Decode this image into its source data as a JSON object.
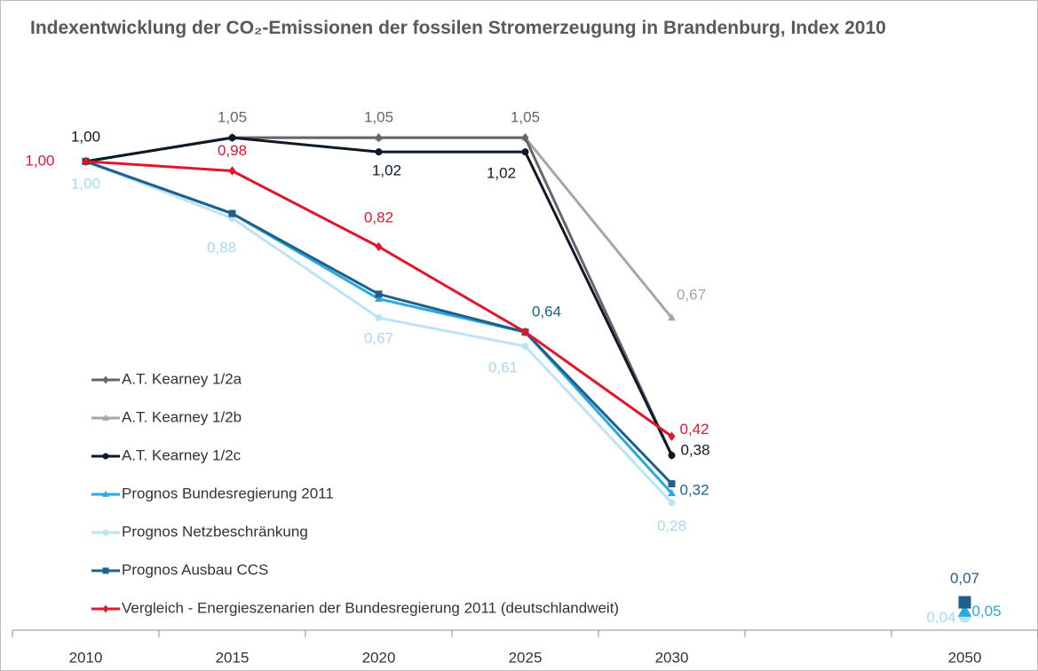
{
  "chart_data": {
    "type": "line",
    "title": "Indexentwicklung der CO₂-Emissionen der fossilen Stromerzeugung in Brandenburg, Index 2010",
    "categories": [
      "2010",
      "2015",
      "2020",
      "2025",
      "2030",
      null,
      "2050"
    ],
    "ylim": [
      0,
      1.2
    ],
    "legend": "left",
    "series": [
      {
        "name": "A.T. Kearney 1/2a",
        "color": "#666666",
        "marker": "diamond",
        "values": [
          1.0,
          1.05,
          1.05,
          1.05,
          0.38,
          null,
          null
        ],
        "value_labels": [
          null,
          "1,05",
          "1,05",
          "1,05",
          null,
          null,
          null
        ]
      },
      {
        "name": "A.T. Kearney 1/2b",
        "color": "#a6a6a6",
        "marker": "triangle",
        "values": [
          1.0,
          1.05,
          1.05,
          1.05,
          0.67,
          null,
          null
        ],
        "value_labels": [
          null,
          null,
          null,
          null,
          "0,67",
          null,
          null
        ]
      },
      {
        "name": "A.T. Kearney 1/2c",
        "color": "#0d1a26",
        "marker": "circle",
        "values": [
          1.0,
          1.05,
          1.02,
          1.02,
          0.38,
          null,
          null
        ],
        "value_labels": [
          "1,00",
          null,
          "1,02",
          "1,02",
          "0,38",
          null,
          null
        ]
      },
      {
        "name": "Prognos Bundesregierung 2011",
        "color": "#2aa8e0",
        "marker": "triangle",
        "values": [
          1.0,
          0.89,
          0.71,
          0.64,
          0.3,
          null,
          0.05
        ],
        "value_labels": [
          null,
          null,
          null,
          null,
          null,
          null,
          "0,05"
        ]
      },
      {
        "name": "Prognos Netzbeschränkung",
        "color": "#bde3f7",
        "marker": "circle",
        "values": [
          1.0,
          0.88,
          0.67,
          0.61,
          0.28,
          null,
          0.04
        ],
        "value_labels": [
          "1,00",
          "0,88",
          "0,67",
          "0,61",
          "0,28",
          null,
          "0,04"
        ]
      },
      {
        "name": "Prognos Ausbau CCS",
        "color": "#1f5f8b",
        "marker": "square",
        "values": [
          1.0,
          0.89,
          0.72,
          0.64,
          0.32,
          null,
          0.07
        ],
        "value_labels": [
          null,
          null,
          null,
          "0,64",
          "0,32",
          null,
          "0,07"
        ]
      },
      {
        "name": "Vergleich - Energieszenarien der Bundesregierung 2011 (deutschlandweit)",
        "color": "#e0162b",
        "marker": "diamond",
        "values": [
          1.0,
          0.98,
          0.82,
          0.64,
          0.42,
          null,
          null
        ],
        "value_labels": [
          "1,00",
          "0,98",
          "0,82",
          null,
          "0,42",
          null,
          null
        ]
      }
    ]
  }
}
